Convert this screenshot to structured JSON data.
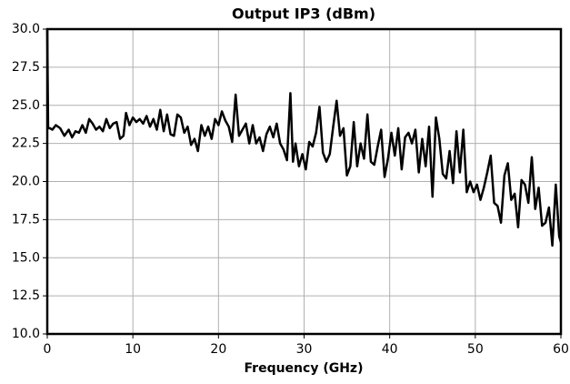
{
  "chart_data": {
    "type": "line",
    "title": "Output IP3 (dBm)",
    "xlabel": "Frequency (GHz)",
    "x": [
      0,
      0.1,
      0.3,
      0.6,
      1.0,
      1.5,
      2.0,
      2.5,
      2.9,
      3.3,
      3.7,
      4.1,
      4.5,
      4.9,
      5.3,
      5.7,
      6.1,
      6.5,
      6.9,
      7.3,
      7.7,
      8.1,
      8.5,
      8.9,
      9.2,
      9.6,
      10.0,
      10.4,
      10.8,
      11.2,
      11.6,
      12.0,
      12.4,
      12.8,
      13.2,
      13.6,
      14.0,
      14.4,
      14.8,
      15.2,
      15.6,
      16.0,
      16.4,
      16.8,
      17.2,
      17.6,
      18.0,
      18.4,
      18.8,
      19.2,
      19.6,
      20.0,
      20.4,
      20.8,
      21.2,
      21.6,
      22.0,
      22.4,
      22.8,
      23.2,
      23.6,
      24.0,
      24.4,
      24.8,
      25.2,
      25.6,
      26.0,
      26.4,
      26.8,
      27.2,
      27.6,
      28.0,
      28.4,
      28.7,
      29.0,
      29.4,
      29.8,
      30.2,
      30.6,
      31.0,
      31.4,
      31.8,
      32.2,
      32.6,
      33.0,
      33.4,
      33.8,
      34.2,
      34.6,
      35.0,
      35.4,
      35.8,
      36.2,
      36.6,
      37.0,
      37.4,
      37.8,
      38.2,
      38.6,
      39.0,
      39.4,
      39.8,
      40.2,
      40.6,
      41.0,
      41.4,
      41.8,
      42.2,
      42.6,
      43.0,
      43.4,
      43.8,
      44.2,
      44.6,
      45.0,
      45.4,
      45.8,
      46.2,
      46.6,
      47.0,
      47.4,
      47.8,
      48.2,
      48.6,
      49.0,
      49.4,
      49.8,
      50.2,
      50.6,
      51.0,
      51.4,
      51.8,
      52.2,
      52.6,
      53.0,
      53.4,
      53.8,
      54.2,
      54.6,
      55.0,
      55.4,
      55.8,
      56.2,
      56.6,
      57.0,
      57.4,
      57.8,
      58.2,
      58.6,
      59.0,
      59.4,
      59.8,
      60.0
    ],
    "series": [
      {
        "name": "Output IP3",
        "color": "#000000",
        "values": [
          30.0,
          23.5,
          23.5,
          23.4,
          23.7,
          23.5,
          23.0,
          23.4,
          22.9,
          23.3,
          23.2,
          23.7,
          23.2,
          24.1,
          23.8,
          23.4,
          23.6,
          23.3,
          24.1,
          23.5,
          23.8,
          23.9,
          22.8,
          23.0,
          24.5,
          23.7,
          24.2,
          23.9,
          24.1,
          23.8,
          24.3,
          23.6,
          24.1,
          23.4,
          24.7,
          23.3,
          24.4,
          23.1,
          23.0,
          24.4,
          24.2,
          23.2,
          23.6,
          22.4,
          22.8,
          22.0,
          23.7,
          23.0,
          23.6,
          22.8,
          24.1,
          23.7,
          24.6,
          24.0,
          23.6,
          22.6,
          25.7,
          23.0,
          23.4,
          23.8,
          22.5,
          23.7,
          22.5,
          22.9,
          22.0,
          23.1,
          23.6,
          22.9,
          23.8,
          22.5,
          22.1,
          21.4,
          25.8,
          21.3,
          22.5,
          21.0,
          21.8,
          20.8,
          22.6,
          22.3,
          23.2,
          24.9,
          21.9,
          21.3,
          21.8,
          23.6,
          25.3,
          23.0,
          23.5,
          20.4,
          21.0,
          23.9,
          21.0,
          22.5,
          21.5,
          24.4,
          21.3,
          21.1,
          22.3,
          23.4,
          20.3,
          21.5,
          23.2,
          21.7,
          23.5,
          20.8,
          22.9,
          23.2,
          22.5,
          23.4,
          20.6,
          22.8,
          21.0,
          23.6,
          19.0,
          24.2,
          22.8,
          20.5,
          20.2,
          22.0,
          19.9,
          23.3,
          20.6,
          23.4,
          19.3,
          20.0,
          19.3,
          19.8,
          18.8,
          19.6,
          20.6,
          21.7,
          18.6,
          18.4,
          17.3,
          20.4,
          21.2,
          18.8,
          19.2,
          17.0,
          20.1,
          19.8,
          18.6,
          21.6,
          18.2,
          19.6,
          17.1,
          17.3,
          18.3,
          15.8,
          19.8,
          16.4,
          16.0
        ]
      }
    ],
    "xlim": [
      0,
      60
    ],
    "xticks": [
      0,
      10,
      20,
      30,
      40,
      50,
      60
    ],
    "ylim": [
      10,
      30
    ],
    "yticks": [
      {
        "value": 10,
        "label": "10.0"
      },
      12.5,
      {
        "value": 15,
        "label": "15.0"
      },
      17.5,
      {
        "value": 20,
        "label": "20.0"
      },
      22.5,
      {
        "value": 25,
        "label": "25.0"
      },
      27.5,
      {
        "value": 30,
        "label": "30.0"
      }
    ],
    "grid": true
  }
}
